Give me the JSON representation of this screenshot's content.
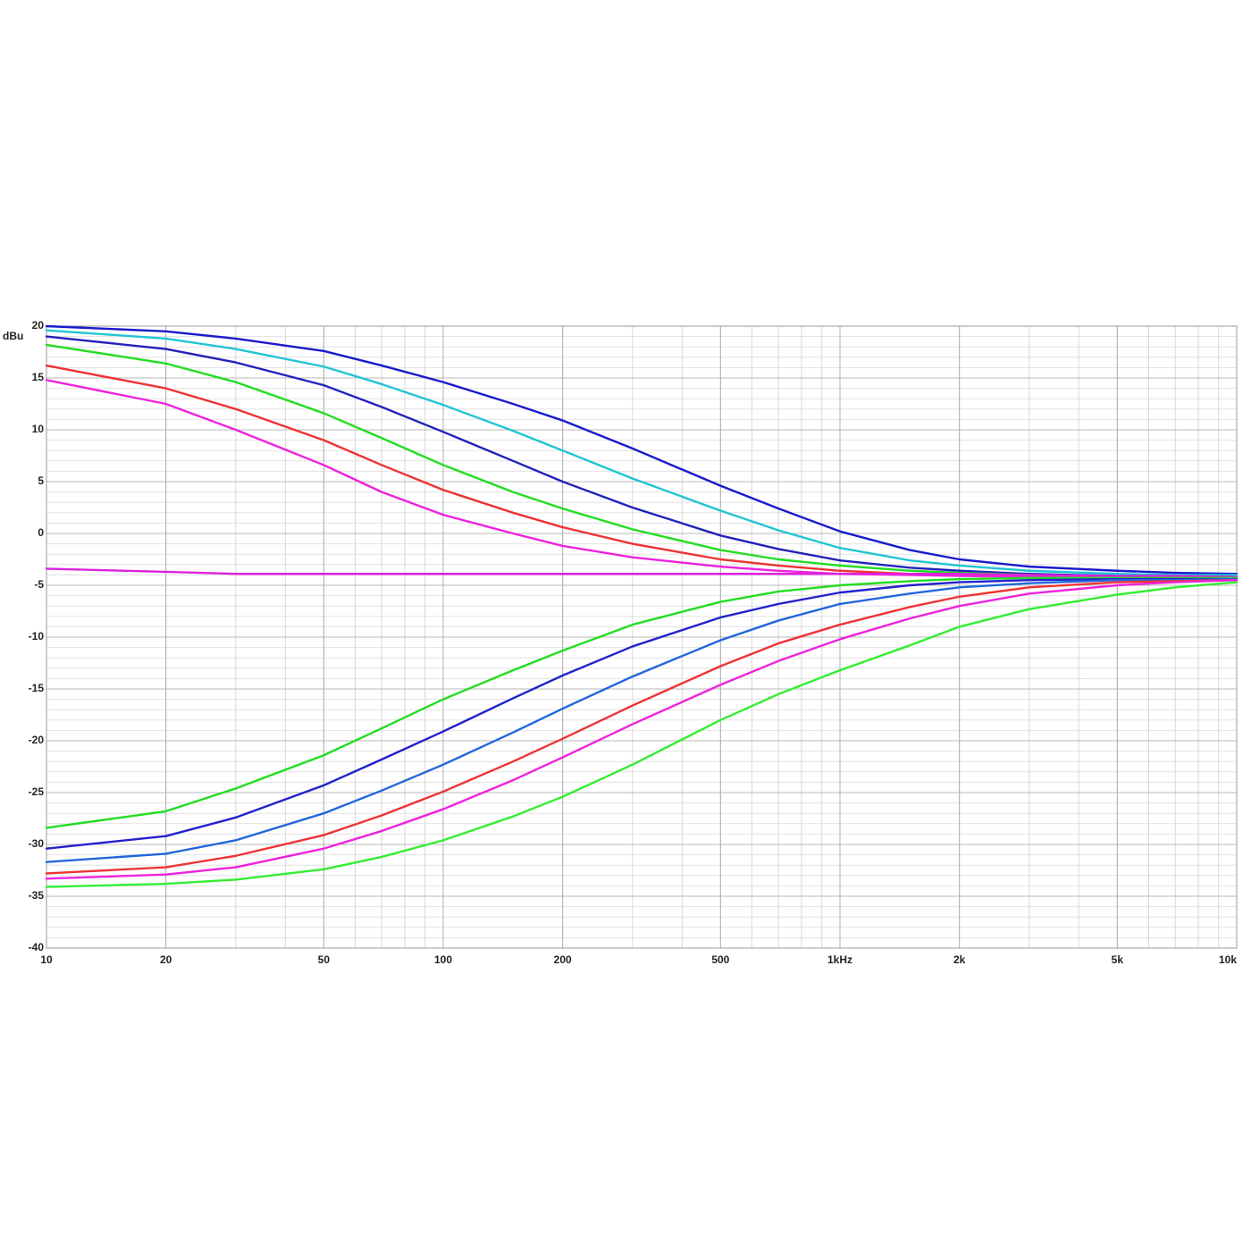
{
  "chart_data": {
    "type": "line",
    "y_label": "dBu",
    "xscale": "log",
    "grid": true,
    "xlim": [
      10,
      10000
    ],
    "ylim": [
      -40,
      20
    ],
    "xticks": [
      10,
      20,
      50,
      100,
      200,
      500,
      {
        "value": 1000,
        "label": "1kHz"
      },
      {
        "value": 2000,
        "label": "2k"
      },
      {
        "value": 5000,
        "label": "5k"
      },
      {
        "value": 10000,
        "label": "10k"
      }
    ],
    "yticks": [
      20,
      15,
      10,
      5,
      0,
      -5,
      -10,
      -15,
      -20,
      -25,
      -30,
      -35,
      -40
    ],
    "x": [
      10,
      20,
      30,
      50,
      70,
      100,
      150,
      200,
      300,
      500,
      700,
      1000,
      1500,
      2000,
      3000,
      5000,
      7000,
      10000
    ],
    "series": [
      {
        "color": "#1a1acc",
        "values": [
          20,
          19.5,
          18.8,
          17.6,
          16.2,
          14.6,
          12.5,
          10.9,
          8.2,
          4.6,
          2.4,
          0.2,
          -1.6,
          -2.5,
          -3.2,
          -3.6,
          -3.8,
          -3.9
        ]
      },
      {
        "color": "#22c4d4",
        "values": [
          19.6,
          18.8,
          17.8,
          16.1,
          14.4,
          12.4,
          9.9,
          8.0,
          5.3,
          2.2,
          0.3,
          -1.4,
          -2.6,
          -3.1,
          -3.6,
          -3.9,
          -4.0,
          -4.0
        ]
      },
      {
        "color": "#2222bb",
        "values": [
          19.0,
          17.8,
          16.5,
          14.3,
          12.2,
          9.8,
          7.0,
          5.0,
          2.5,
          -0.2,
          -1.5,
          -2.6,
          -3.3,
          -3.6,
          -3.9,
          -4.1,
          -4.1,
          -4.2
        ]
      },
      {
        "color": "#22dd22",
        "values": [
          18.2,
          16.4,
          14.6,
          11.6,
          9.2,
          6.6,
          4.0,
          2.4,
          0.4,
          -1.6,
          -2.5,
          -3.1,
          -3.6,
          -3.8,
          -4.0,
          -4.2,
          -4.2,
          -4.3
        ]
      },
      {
        "color": "#ee3333",
        "values": [
          16.2,
          14.0,
          12.0,
          9.0,
          6.6,
          4.2,
          2.0,
          0.6,
          -1.0,
          -2.5,
          -3.1,
          -3.6,
          -3.9,
          -4.0,
          -4.1,
          -4.3,
          -4.3,
          -4.4
        ]
      },
      {
        "color": "#ee22dd",
        "values": [
          14.8,
          12.5,
          10.0,
          6.6,
          4.0,
          1.8,
          0.0,
          -1.2,
          -2.3,
          -3.2,
          -3.6,
          -3.9,
          -4.0,
          -4.1,
          -4.2,
          -4.3,
          -4.3,
          -4.4
        ]
      },
      {
        "color": "#dd22dd",
        "values": [
          -3.4,
          -3.7,
          -3.9,
          -3.9,
          -3.9,
          -3.9,
          -3.9,
          -3.9,
          -3.9,
          -3.9,
          -3.9,
          -3.9,
          -3.9,
          -3.9,
          -4.0,
          -4.1,
          -4.1,
          -4.2
        ]
      },
      {
        "color": "#22dd22",
        "values": [
          -28.4,
          -26.8,
          -24.6,
          -21.4,
          -18.8,
          -16.0,
          -13.2,
          -11.3,
          -8.8,
          -6.6,
          -5.6,
          -5.0,
          -4.6,
          -4.4,
          -4.3,
          -4.3,
          -4.3,
          -4.3
        ]
      },
      {
        "color": "#2222cc",
        "values": [
          -30.4,
          -29.2,
          -27.4,
          -24.3,
          -21.8,
          -19.1,
          -15.9,
          -13.7,
          -10.9,
          -8.1,
          -6.8,
          -5.7,
          -5.0,
          -4.7,
          -4.5,
          -4.4,
          -4.4,
          -4.4
        ]
      },
      {
        "color": "#2266dd",
        "values": [
          -31.7,
          -30.9,
          -29.6,
          -27.0,
          -24.8,
          -22.3,
          -19.2,
          -16.9,
          -13.8,
          -10.3,
          -8.4,
          -6.8,
          -5.8,
          -5.2,
          -4.8,
          -4.5,
          -4.5,
          -4.4
        ]
      },
      {
        "color": "#ee3333",
        "values": [
          -32.8,
          -32.2,
          -31.1,
          -29.1,
          -27.2,
          -24.9,
          -22.0,
          -19.8,
          -16.6,
          -12.8,
          -10.6,
          -8.8,
          -7.1,
          -6.1,
          -5.2,
          -4.7,
          -4.6,
          -4.5
        ]
      },
      {
        "color": "#ee22dd",
        "values": [
          -33.3,
          -32.9,
          -32.2,
          -30.4,
          -28.7,
          -26.6,
          -23.8,
          -21.6,
          -18.4,
          -14.6,
          -12.3,
          -10.2,
          -8.2,
          -7.0,
          -5.8,
          -5.0,
          -4.7,
          -4.5
        ]
      },
      {
        "color": "#33ee33",
        "values": [
          -34.1,
          -33.8,
          -33.4,
          -32.4,
          -31.2,
          -29.6,
          -27.3,
          -25.4,
          -22.3,
          -18.0,
          -15.5,
          -13.2,
          -10.8,
          -9.0,
          -7.3,
          -5.9,
          -5.2,
          -4.7
        ]
      }
    ]
  }
}
